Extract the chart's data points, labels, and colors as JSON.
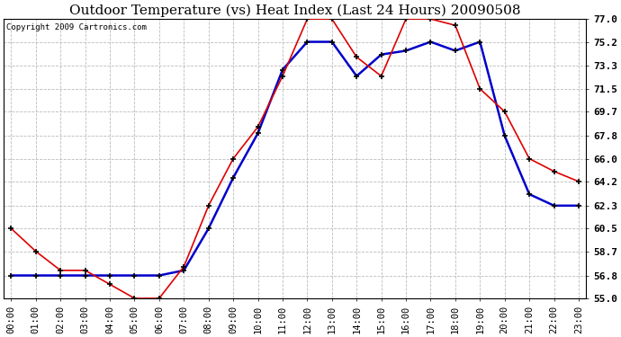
{
  "title": "Outdoor Temperature (vs) Heat Index (Last 24 Hours) 20090508",
  "copyright": "Copyright 2009 Cartronics.com",
  "x_labels": [
    "00:00",
    "01:00",
    "02:00",
    "03:00",
    "04:00",
    "05:00",
    "06:00",
    "07:00",
    "08:00",
    "09:00",
    "10:00",
    "11:00",
    "12:00",
    "13:00",
    "14:00",
    "15:00",
    "16:00",
    "17:00",
    "18:00",
    "19:00",
    "20:00",
    "21:00",
    "22:00",
    "23:00"
  ],
  "y_ticks": [
    55.0,
    56.8,
    58.7,
    60.5,
    62.3,
    64.2,
    66.0,
    67.8,
    69.7,
    71.5,
    73.3,
    75.2,
    77.0
  ],
  "y_min": 55.0,
  "y_max": 77.0,
  "temp_data": [
    60.5,
    58.7,
    57.2,
    57.2,
    56.1,
    55.0,
    55.0,
    57.5,
    62.3,
    66.0,
    68.5,
    72.5,
    77.0,
    77.0,
    74.0,
    72.5,
    77.0,
    77.0,
    76.5,
    71.5,
    69.7,
    66.0,
    65.0,
    64.2
  ],
  "heat_data": [
    56.8,
    56.8,
    56.8,
    56.8,
    56.8,
    56.8,
    56.8,
    57.2,
    60.5,
    64.5,
    68.0,
    73.0,
    75.2,
    75.2,
    72.5,
    74.2,
    74.5,
    75.2,
    74.5,
    75.2,
    67.8,
    63.2,
    62.3,
    62.3
  ],
  "temp_color": "#dd0000",
  "heat_color": "#0000cc",
  "bg_color": "#ffffff",
  "grid_color": "#bbbbbb",
  "title_fontsize": 11,
  "copyright_fontsize": 6.5,
  "tick_fontsize": 7.5,
  "ytick_fontsize": 8
}
